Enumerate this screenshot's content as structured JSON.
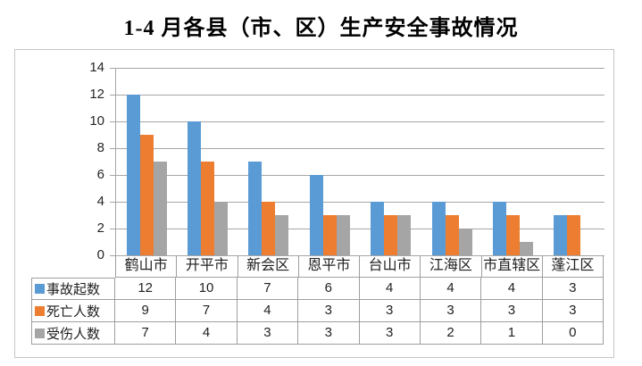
{
  "title": "1-4 月各县（市、区）生产安全事故情况",
  "chart_data": {
    "type": "bar",
    "title": "1-4 月各县（市、区）生产安全事故情况",
    "categories": [
      "鹤山市",
      "开平市",
      "新会区",
      "恩平市",
      "台山市",
      "江海区",
      "市直辖区",
      "蓬江区"
    ],
    "series": [
      {
        "name": "事故起数",
        "color": "#5B9BD5",
        "values": [
          12,
          10,
          7,
          6,
          4,
          4,
          4,
          3
        ]
      },
      {
        "name": "死亡人数",
        "color": "#ED7D31",
        "values": [
          9,
          7,
          4,
          3,
          3,
          3,
          3,
          3
        ]
      },
      {
        "name": "受伤人数",
        "color": "#A5A5A5",
        "values": [
          7,
          4,
          3,
          3,
          3,
          2,
          1,
          0
        ]
      }
    ],
    "xlabel": "",
    "ylabel": "",
    "ylim": [
      0,
      14
    ],
    "ytick_step": 2,
    "grid": true,
    "legend_position": "data-table-left",
    "data_table": true
  },
  "colors": {
    "gridline": "#A6A6A6",
    "table_border": "#9E9E9E",
    "outer_border": "#C6C6C6"
  }
}
